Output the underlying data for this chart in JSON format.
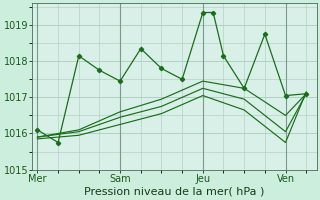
{
  "background_color": "#cceedd",
  "plot_bg_color": "#d8f0e8",
  "grid_color": "#aaccbb",
  "line_color": "#1a6e1a",
  "xlabel": "Pression niveau de la mer( hPa )",
  "ylim": [
    1015.0,
    1019.6
  ],
  "yticks": [
    1015,
    1016,
    1017,
    1018,
    1019
  ],
  "xtick_labels": [
    "Mer",
    "Sam",
    "Jeu",
    "Ven"
  ],
  "xtick_positions": [
    0,
    8,
    16,
    24
  ],
  "series1_x": [
    0,
    2,
    4,
    6,
    8,
    10,
    12,
    14,
    16,
    17,
    18,
    20,
    22,
    24,
    26
  ],
  "series1_y": [
    1016.1,
    1015.75,
    1018.15,
    1017.75,
    1017.45,
    1018.35,
    1017.8,
    1017.5,
    1019.35,
    1019.35,
    1018.15,
    1017.25,
    1018.75,
    1017.05,
    1017.1
  ],
  "series2_x": [
    0,
    4,
    8,
    12,
    16,
    20,
    24,
    26
  ],
  "series2_y": [
    1015.85,
    1015.95,
    1016.25,
    1016.55,
    1017.05,
    1016.65,
    1015.75,
    1017.15
  ],
  "series3_x": [
    0,
    4,
    8,
    12,
    16,
    20,
    24,
    26
  ],
  "series3_y": [
    1015.9,
    1016.05,
    1016.45,
    1016.75,
    1017.25,
    1016.95,
    1016.05,
    1017.1
  ],
  "series4_x": [
    0,
    4,
    8,
    12,
    16,
    20,
    24,
    26
  ],
  "series4_y": [
    1015.9,
    1016.1,
    1016.6,
    1016.95,
    1017.45,
    1017.25,
    1016.5,
    1017.1
  ],
  "xlabel_fontsize": 8,
  "tick_fontsize": 7
}
